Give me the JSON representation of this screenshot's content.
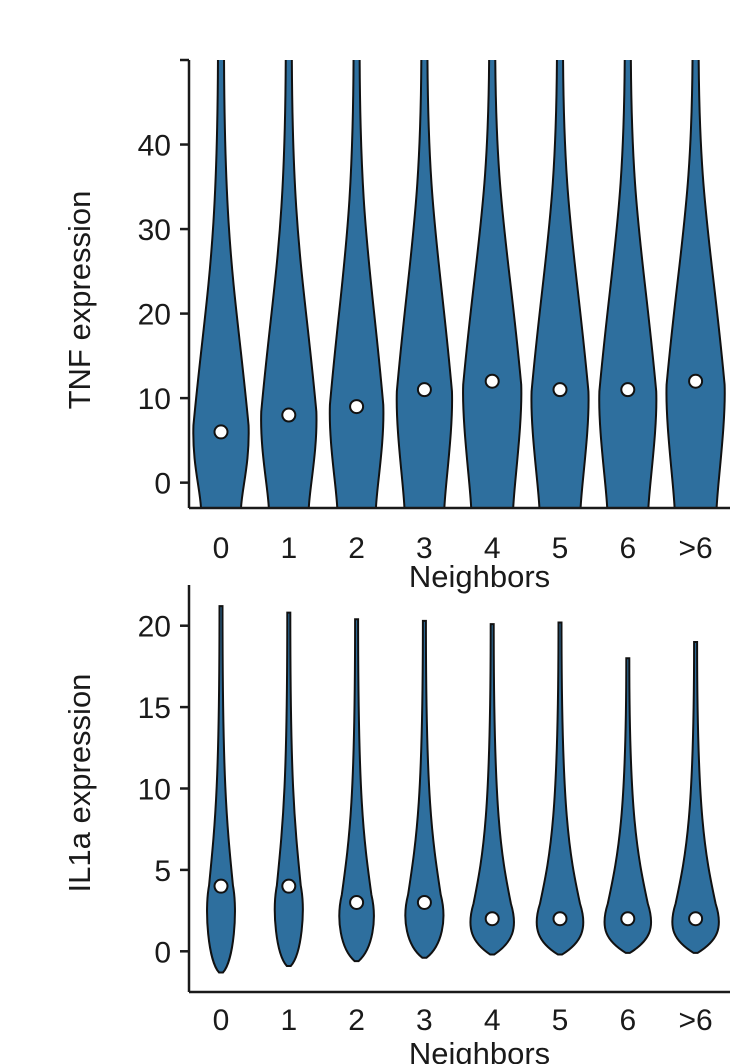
{
  "colors": {
    "violin_fill": "#2e6f9e",
    "median_fill": "#ffffff",
    "outline": "#111111"
  },
  "chart_data": [
    {
      "type": "violin",
      "ylabel": "TNF expression",
      "xlabel": "Neighbors",
      "categories": [
        "0",
        "1",
        "2",
        "3",
        "4",
        "5",
        "6",
        ">6"
      ],
      "medians": [
        6,
        8,
        9,
        11,
        12,
        11,
        11,
        12
      ],
      "ylim": [
        -3,
        50
      ],
      "yticks": [
        0,
        10,
        20,
        30,
        40
      ],
      "grid": false,
      "legend": "none"
    },
    {
      "type": "violin",
      "ylabel": "IL1a expression",
      "xlabel": "Neighbors",
      "categories": [
        "0",
        "1",
        "2",
        "3",
        "4",
        "5",
        "6",
        ">6"
      ],
      "medians": [
        4,
        4,
        3,
        3,
        2,
        2,
        2,
        2
      ],
      "max_values": [
        21.2,
        20.8,
        20.4,
        20.3,
        20.1,
        20.2,
        18,
        19
      ],
      "min_values": [
        -1.3,
        -0.9,
        -0.6,
        -0.4,
        -0.2,
        -0.2,
        -0.1,
        -0.1
      ],
      "ylim": [
        -2.5,
        22.5
      ],
      "yticks": [
        0,
        5,
        10,
        15,
        20
      ],
      "grid": false,
      "legend": "none"
    }
  ]
}
